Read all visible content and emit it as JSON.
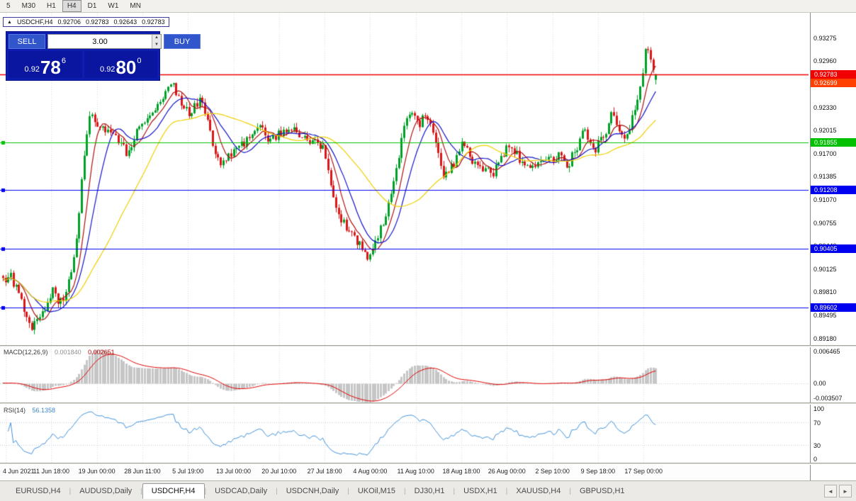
{
  "toolbar": {
    "timeframes": [
      "5",
      "M30",
      "H1",
      "H4",
      "D1",
      "W1",
      "MN"
    ],
    "active": "H4"
  },
  "ohlc": {
    "symbol": "USDCHF,H4",
    "open": "0.92706",
    "high": "0.92783",
    "low": "0.92643",
    "close": "0.92783"
  },
  "trade_panel": {
    "sell_label": "SELL",
    "buy_label": "BUY",
    "volume": "3.00",
    "sell_price": {
      "prefix": "0.92",
      "big": "78",
      "sup": "6"
    },
    "buy_price": {
      "prefix": "0.92",
      "big": "80",
      "sup": "0"
    }
  },
  "macd": {
    "label": "MACD(12,26,9)",
    "main_value": "0.001840",
    "signal_value": "0.002651",
    "axis_labels": [
      "0.006465",
      "0.00",
      "-0.003507"
    ]
  },
  "rsi": {
    "label": "RSI(14)",
    "value": "56.1358",
    "axis_labels": [
      "100",
      "70",
      "30",
      "0"
    ]
  },
  "tabs": {
    "items": [
      "EURUSD,H4",
      "AUDUSD,Daily",
      "USDCHF,H4",
      "USDCAD,Daily",
      "USDCNH,Daily",
      "UKOil,M15",
      "DJ30,H1",
      "USDX,H1",
      "XAUUSD,H4",
      "GBPUSD,H1"
    ],
    "active": "USDCHF,H4"
  },
  "chart_data": {
    "type": "candlestick",
    "symbol": "USDCHF",
    "timeframe": "H4",
    "last_ohlc": {
      "open": 0.92706,
      "high": 0.92783,
      "low": 0.92643,
      "close": 0.92783
    },
    "price_axis_labels": [
      "0.93275",
      "0.92960",
      "0.92645",
      "0.92330",
      "0.92015",
      "0.91700",
      "0.91385",
      "0.91070",
      "0.90755",
      "0.90440",
      "0.90125",
      "0.89810",
      "0.89495",
      "0.89180"
    ],
    "time_axis_labels": [
      "4 Jun 2021",
      "11 Jun 18:00",
      "19 Jun 00:00",
      "28 Jun 11:00",
      "5 Jul 19:00",
      "13 Jul 00:00",
      "20 Jul 10:00",
      "27 Jul 18:00",
      "4 Aug 00:00",
      "11 Aug 10:00",
      "18 Aug 18:00",
      "26 Aug 00:00",
      "2 Sep 10:00",
      "9 Sep 18:00",
      "17 Sep 00:00"
    ],
    "visible_price_range": {
      "top": 0.9362,
      "bottom": 0.8909
    },
    "horizontal_levels": [
      {
        "price": 0.92783,
        "label": "0.92783",
        "color": "#f00000",
        "line": true,
        "handle": false
      },
      {
        "price": 0.92699,
        "label": "0.92699",
        "color": "#ff4000",
        "line": false,
        "handle": false
      },
      {
        "price": 0.91855,
        "label": "0.91855",
        "color": "#00c000",
        "line": true,
        "handle": true
      },
      {
        "price": 0.91208,
        "label": "0.91208",
        "color": "#0000f0",
        "line": true,
        "handle": true
      },
      {
        "price": 0.90405,
        "label": "0.90405",
        "color": "#0000f0",
        "line": true,
        "handle": true
      },
      {
        "price": 0.89602,
        "label": "0.89602",
        "color": "#0000f0",
        "line": true,
        "handle": true
      }
    ],
    "moving_averages": [
      {
        "period": 7,
        "color": "#b01010"
      },
      {
        "period": 13,
        "color": "#1414c8"
      },
      {
        "period": 34,
        "color": "#efcf00"
      }
    ],
    "candles": {
      "count": 250,
      "up_color": "#00a028",
      "down_color": "#dc1616",
      "price_path_anchors": [
        [
          0.0,
          0.8998
        ],
        [
          0.012,
          0.9004
        ],
        [
          0.025,
          0.8975
        ],
        [
          0.045,
          0.8931
        ],
        [
          0.058,
          0.8955
        ],
        [
          0.066,
          0.8964
        ],
        [
          0.075,
          0.8983
        ],
        [
          0.085,
          0.897
        ],
        [
          0.093,
          0.8976
        ],
        [
          0.104,
          0.9003
        ],
        [
          0.113,
          0.9061
        ],
        [
          0.124,
          0.9167
        ],
        [
          0.135,
          0.9232
        ],
        [
          0.148,
          0.9201
        ],
        [
          0.161,
          0.9206
        ],
        [
          0.175,
          0.9191
        ],
        [
          0.189,
          0.9172
        ],
        [
          0.207,
          0.9201
        ],
        [
          0.229,
          0.9225
        ],
        [
          0.248,
          0.9252
        ],
        [
          0.259,
          0.9264
        ],
        [
          0.273,
          0.9234
        ],
        [
          0.287,
          0.9225
        ],
        [
          0.305,
          0.9247
        ],
        [
          0.316,
          0.9205
        ],
        [
          0.327,
          0.9158
        ],
        [
          0.343,
          0.9162
        ],
        [
          0.359,
          0.9176
        ],
        [
          0.376,
          0.9191
        ],
        [
          0.395,
          0.9214
        ],
        [
          0.408,
          0.9186
        ],
        [
          0.425,
          0.92
        ],
        [
          0.441,
          0.9205
        ],
        [
          0.457,
          0.9191
        ],
        [
          0.473,
          0.9186
        ],
        [
          0.49,
          0.9176
        ],
        [
          0.506,
          0.911
        ],
        [
          0.519,
          0.908
        ],
        [
          0.533,
          0.906
        ],
        [
          0.549,
          0.9042
        ],
        [
          0.56,
          0.903
        ],
        [
          0.573,
          0.9051
        ],
        [
          0.587,
          0.909
        ],
        [
          0.602,
          0.9148
        ],
        [
          0.615,
          0.9214
        ],
        [
          0.625,
          0.9228
        ],
        [
          0.638,
          0.921
        ],
        [
          0.649,
          0.9224
        ],
        [
          0.663,
          0.9181
        ],
        [
          0.674,
          0.9143
        ],
        [
          0.688,
          0.9152
        ],
        [
          0.704,
          0.9186
        ],
        [
          0.718,
          0.9162
        ],
        [
          0.734,
          0.9152
        ],
        [
          0.75,
          0.9143
        ],
        [
          0.767,
          0.9172
        ],
        [
          0.78,
          0.9181
        ],
        [
          0.794,
          0.9157
        ],
        [
          0.81,
          0.9152
        ],
        [
          0.826,
          0.9157
        ],
        [
          0.84,
          0.9162
        ],
        [
          0.853,
          0.9172
        ],
        [
          0.864,
          0.9152
        ],
        [
          0.877,
          0.9176
        ],
        [
          0.891,
          0.9201
        ],
        [
          0.906,
          0.9176
        ],
        [
          0.919,
          0.9191
        ],
        [
          0.932,
          0.9224
        ],
        [
          0.942,
          0.9201
        ],
        [
          0.953,
          0.9186
        ],
        [
          0.965,
          0.922
        ],
        [
          0.976,
          0.9262
        ],
        [
          0.986,
          0.9318
        ],
        [
          0.992,
          0.9295
        ],
        [
          1.0,
          0.9278
        ]
      ]
    },
    "indicators": [
      {
        "type": "MACD",
        "params": [
          12,
          26,
          9
        ],
        "histogram_color": "#c6c6c6",
        "signal_color": "#e00000",
        "range": [
          -0.00351,
          0.00647
        ],
        "current": [
          0.00184,
          0.002651
        ]
      },
      {
        "type": "RSI",
        "params": [
          14
        ],
        "color": "#4090d8",
        "range": [
          0,
          100
        ],
        "levels": [
          30,
          70
        ],
        "current": 56.1358
      }
    ]
  }
}
